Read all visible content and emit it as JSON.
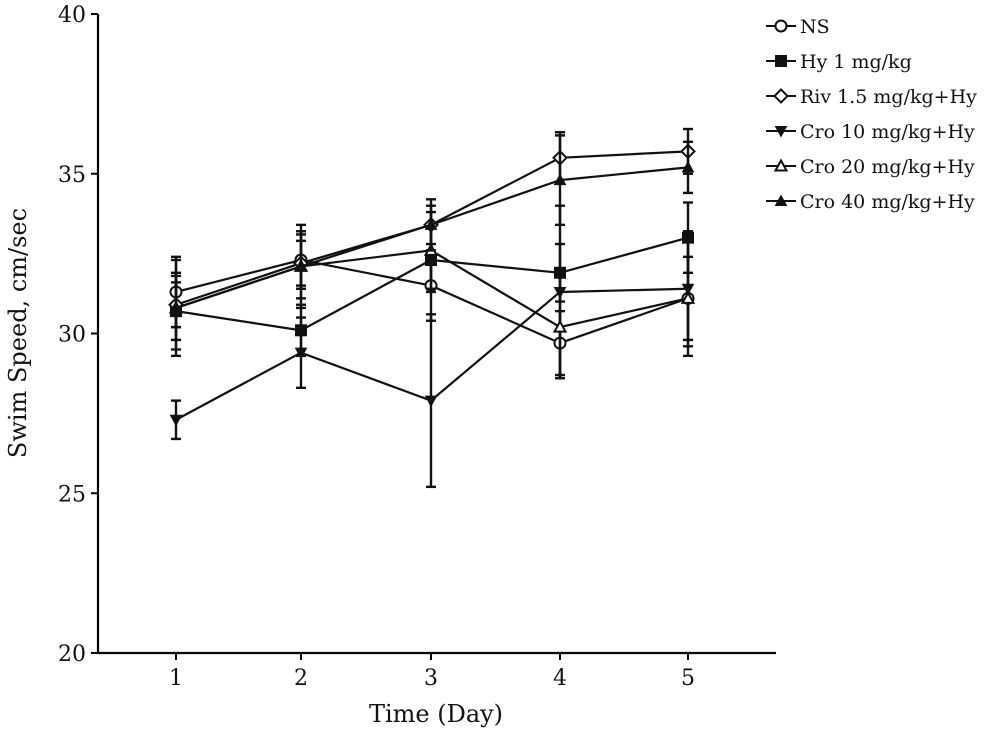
{
  "chart_data": {
    "type": "line",
    "title": "",
    "xlabel": "Time (Day)",
    "ylabel": "Swim Speed, cm/sec",
    "x": [
      1,
      2,
      3,
      4,
      5
    ],
    "x_ticks": [
      "1",
      "2",
      "3",
      "4",
      "5"
    ],
    "ylim": [
      20,
      40
    ],
    "y_ticks": [
      "20",
      "25",
      "30",
      "35",
      "40"
    ],
    "grid": false,
    "legend_position": "top-right",
    "series": [
      {
        "name": "NS",
        "marker": "open-circle",
        "values": [
          31.3,
          32.3,
          31.5,
          29.7,
          31.1
        ],
        "errors": [
          1.1,
          0.9,
          1.1,
          1.0,
          1.3
        ]
      },
      {
        "name": "Hy 1 mg/kg",
        "marker": "filled-square",
        "values": [
          30.7,
          30.1,
          32.3,
          31.9,
          33.0
        ],
        "errors": [
          1.2,
          0.8,
          1.0,
          0.9,
          1.1
        ]
      },
      {
        "name": "Riv 1.5 mg/kg+Hy",
        "marker": "open-diamond",
        "values": [
          30.9,
          32.2,
          33.4,
          35.5,
          35.7
        ],
        "errors": [
          0.7,
          0.7,
          0.6,
          0.8,
          0.7
        ]
      },
      {
        "name": "Cro 10 mg/kg+Hy",
        "marker": "filled-triangle-down",
        "values": [
          27.3,
          29.4,
          27.9,
          31.3,
          31.4
        ],
        "errors": [
          0.6,
          1.1,
          2.7,
          2.7,
          1.8
        ]
      },
      {
        "name": "Cro 20 mg/kg+Hy",
        "marker": "open-triangle-up",
        "values": [
          30.8,
          32.1,
          32.6,
          30.2,
          31.1
        ],
        "errors": [
          1.5,
          1.3,
          1.2,
          1.6,
          1.8
        ]
      },
      {
        "name": "Cro 40 mg/kg+Hy",
        "marker": "filled-triangle-up",
        "values": [
          30.8,
          32.1,
          33.4,
          34.8,
          35.2
        ],
        "errors": [
          1.0,
          1.0,
          0.8,
          1.4,
          0.8
        ]
      }
    ]
  }
}
